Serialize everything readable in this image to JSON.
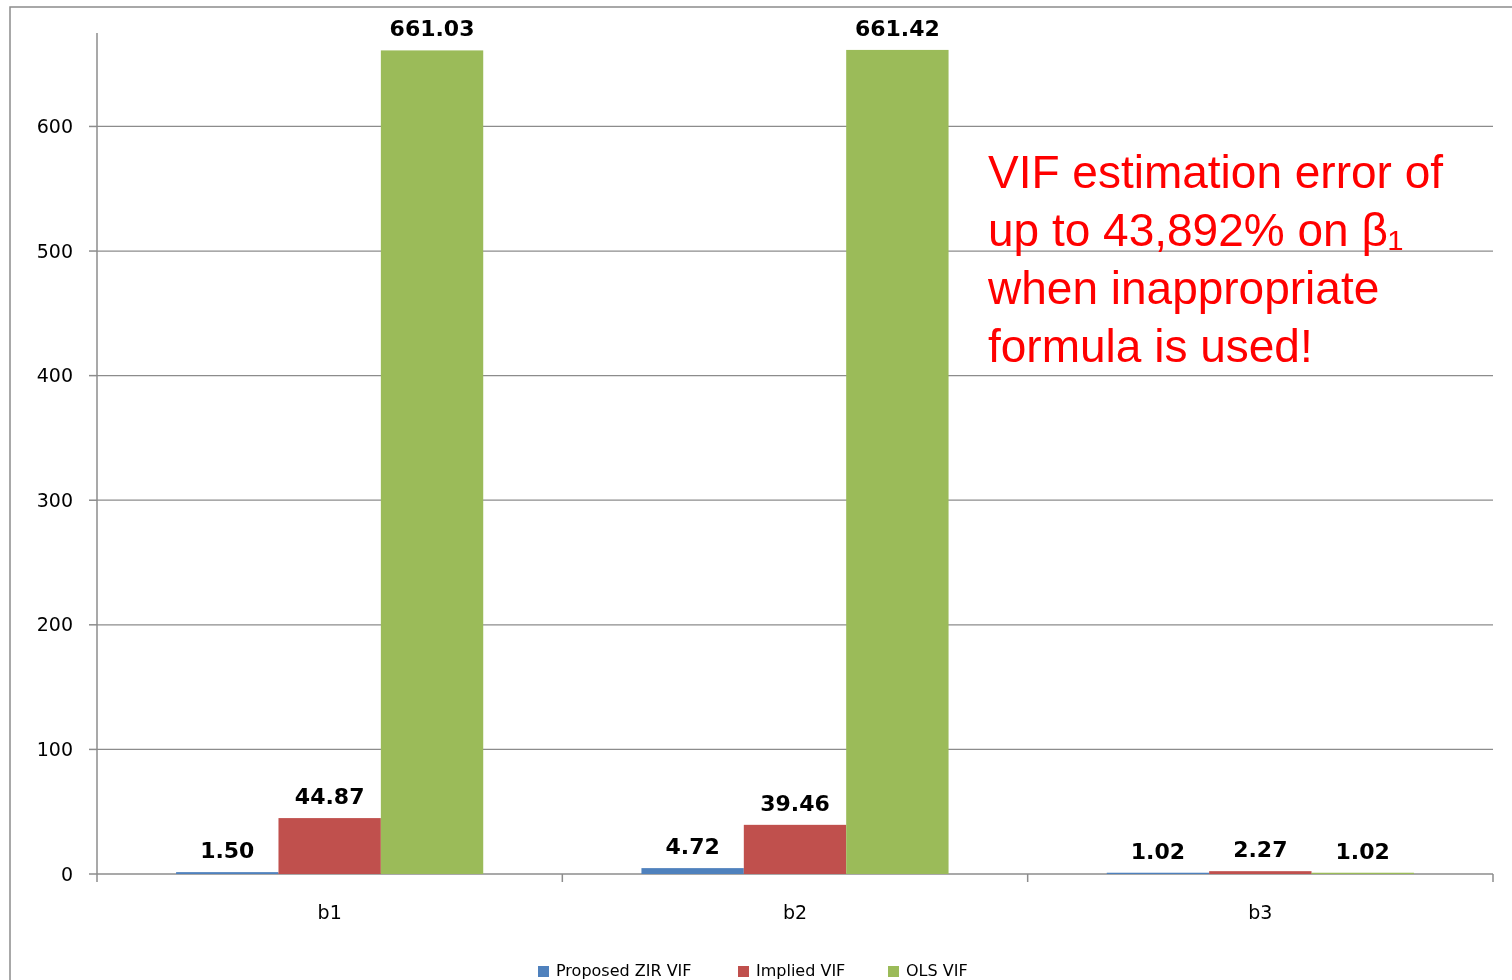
{
  "chart_data": {
    "type": "bar",
    "categories": [
      "b1",
      "b2",
      "b3"
    ],
    "series": [
      {
        "name": "Proposed ZIR VIF",
        "color": "#4f81bd",
        "values": [
          1.5,
          4.72,
          1.02
        ],
        "value_labels": [
          "1.50",
          "4.72",
          "1.02"
        ]
      },
      {
        "name": "Implied VIF",
        "color": "#c0504d",
        "values": [
          44.87,
          39.46,
          2.27
        ],
        "value_labels": [
          "44.87",
          "39.46",
          "2.27"
        ]
      },
      {
        "name": "OLS VIF",
        "color": "#9bbb59",
        "values": [
          661.03,
          661.42,
          1.02
        ],
        "value_labels": [
          "661.03",
          "661.42",
          "1.02"
        ]
      }
    ],
    "ylim": [
      0,
      675
    ],
    "yticks": [
      0,
      100,
      200,
      300,
      400,
      500,
      600
    ],
    "grid": "y",
    "legend": "bottom",
    "annotations": [
      "VIF estimation error of up to 43,892% on β₁ when inappropriate formula is used!"
    ]
  }
}
